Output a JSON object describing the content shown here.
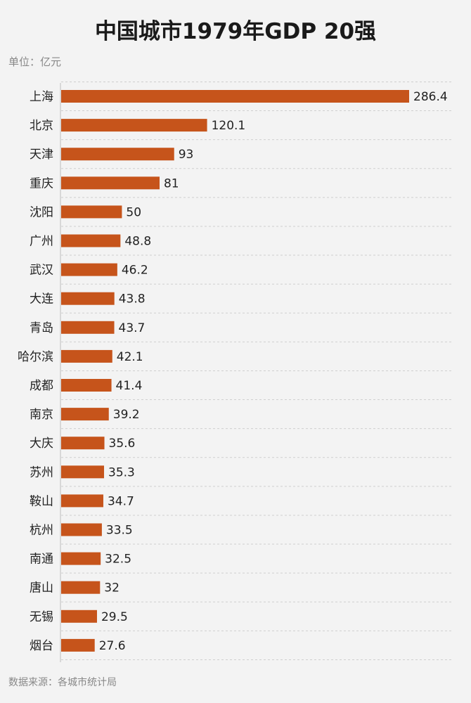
{
  "header": {
    "title": "中国城市1979年GDP 20强",
    "unit": "单位：亿元"
  },
  "footer": {
    "source": "数据来源：各城市统计局"
  },
  "chart_data": {
    "type": "bar",
    "orientation": "horizontal",
    "title": "中国城市1979年GDP 20强",
    "ylabel": "单位：亿元",
    "xlabel": "",
    "grid": true,
    "bar_color": "#c6541b",
    "xlim": [
      0,
      286.4
    ],
    "categories": [
      "上海",
      "北京",
      "天津",
      "重庆",
      "沈阳",
      "广州",
      "武汉",
      "大连",
      "青岛",
      "哈尔滨",
      "成都",
      "南京",
      "大庆",
      "苏州",
      "鞍山",
      "杭州",
      "南通",
      "唐山",
      "无锡",
      "烟台"
    ],
    "values": [
      286.4,
      120.1,
      93,
      81,
      50,
      48.8,
      46.2,
      43.8,
      43.7,
      42.1,
      41.4,
      39.2,
      35.6,
      35.3,
      34.7,
      33.5,
      32.5,
      32,
      29.5,
      27.6
    ],
    "value_labels": [
      "286.4",
      "120.1",
      "93",
      "81",
      "50",
      "48.8",
      "46.2",
      "43.8",
      "43.7",
      "42.1",
      "41.4",
      "39.2",
      "35.6",
      "35.3",
      "34.7",
      "33.5",
      "32.5",
      "32",
      "29.5",
      "27.6"
    ]
  }
}
